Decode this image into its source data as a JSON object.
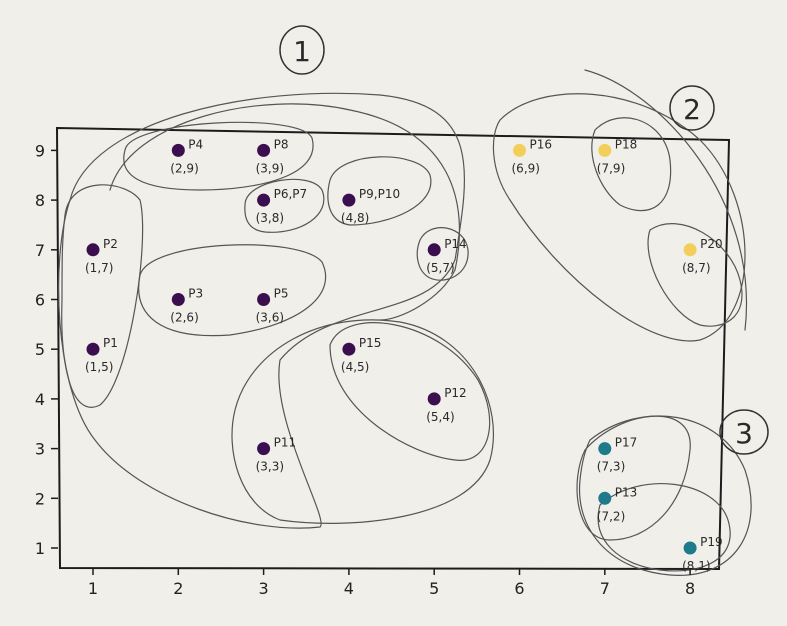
{
  "chart_data": {
    "type": "scatter",
    "title": "",
    "xlabel": "",
    "ylabel": "",
    "x_ticks": [
      "1",
      "2",
      "3",
      "4",
      "5",
      "6",
      "7",
      "8"
    ],
    "y_ticks": [
      "1",
      "2",
      "3",
      "4",
      "5",
      "6",
      "7",
      "8",
      "9"
    ],
    "xlim": [
      0.6,
      8.4
    ],
    "ylim": [
      0.6,
      9.4
    ],
    "grid": false,
    "colors": {
      "cluster1": "#3b0f4f",
      "cluster2": "#f2cf5b",
      "cluster3": "#1f7a8c"
    },
    "points": [
      {
        "id": "P1",
        "x": 1,
        "y": 5,
        "cluster": 1,
        "label": "P1",
        "coord": "(1,5)"
      },
      {
        "id": "P2",
        "x": 1,
        "y": 7,
        "cluster": 1,
        "label": "P2",
        "coord": "(1,7)"
      },
      {
        "id": "P3",
        "x": 2,
        "y": 6,
        "cluster": 1,
        "label": "P3",
        "coord": "(2,6)"
      },
      {
        "id": "P4",
        "x": 2,
        "y": 9,
        "cluster": 1,
        "label": "P4",
        "coord": "(2,9)"
      },
      {
        "id": "P5",
        "x": 3,
        "y": 6,
        "cluster": 1,
        "label": "P5",
        "coord": "(3,6)"
      },
      {
        "id": "P6",
        "x": 3,
        "y": 8,
        "cluster": 1,
        "label": "P6,P7",
        "coord": "(3,8)"
      },
      {
        "id": "P8",
        "x": 3,
        "y": 9,
        "cluster": 1,
        "label": "P8",
        "coord": "(3,9)"
      },
      {
        "id": "P9",
        "x": 4,
        "y": 8,
        "cluster": 1,
        "label": "P9,P10",
        "coord": "(4,8)"
      },
      {
        "id": "P11",
        "x": 3,
        "y": 3,
        "cluster": 1,
        "label": "P11",
        "coord": "(3,3)"
      },
      {
        "id": "P12",
        "x": 5,
        "y": 4,
        "cluster": 1,
        "label": "P12",
        "coord": "(5,4)"
      },
      {
        "id": "P14",
        "x": 5,
        "y": 7,
        "cluster": 1,
        "label": "P14",
        "coord": "(5,7)"
      },
      {
        "id": "P15",
        "x": 4,
        "y": 5,
        "cluster": 1,
        "label": "P15",
        "coord": "(4,5)"
      },
      {
        "id": "P16",
        "x": 6,
        "y": 9,
        "cluster": 2,
        "label": "P16",
        "coord": "(6,9)"
      },
      {
        "id": "P18",
        "x": 7,
        "y": 9,
        "cluster": 2,
        "label": "P18",
        "coord": "(7,9)"
      },
      {
        "id": "P20",
        "x": 8,
        "y": 7,
        "cluster": 2,
        "label": "P20",
        "coord": "(8,7)"
      },
      {
        "id": "P13",
        "x": 7,
        "y": 2,
        "cluster": 3,
        "label": "P13",
        "coord": "(7,2)"
      },
      {
        "id": "P17",
        "x": 7,
        "y": 3,
        "cluster": 3,
        "label": "P17",
        "coord": "(7,3)"
      },
      {
        "id": "P19",
        "x": 8,
        "y": 1,
        "cluster": 3,
        "label": "P19",
        "coord": "(8,1)"
      }
    ],
    "cluster_labels": [
      "1",
      "2",
      "3"
    ]
  }
}
